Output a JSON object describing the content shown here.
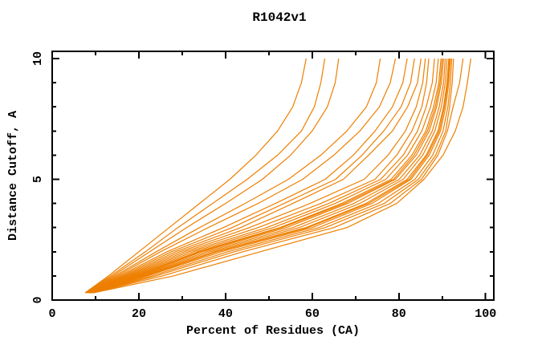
{
  "window": {
    "background_color": "#ffffff",
    "text_color": "#000000"
  },
  "chart_data": {
    "type": "line",
    "title": "R1042v1",
    "xlabel": "Percent of Residues (CA)",
    "ylabel": "Distance Cutoff, A",
    "legend": "none",
    "grid": false,
    "frame": "box-with-mirrored-inward-ticks",
    "line_color": "#ee7f00",
    "frame_color": "#000000",
    "xlim": [
      0,
      101.9
    ],
    "ylim": [
      0,
      10.3
    ],
    "x_major_ticks": [
      0,
      20,
      40,
      60,
      80,
      100
    ],
    "x_minor_ticks": [
      10,
      30,
      50,
      70,
      90
    ],
    "y_major_ticks": [
      0,
      5,
      10
    ],
    "y_minor_ticks": [
      1,
      2,
      3,
      4,
      6,
      7,
      8,
      9
    ],
    "x_tick_labels": [
      "0",
      "20",
      "40",
      "60",
      "80",
      "100"
    ],
    "y_tick_labels": [
      "0",
      "5",
      "10"
    ],
    "n_curves": 24,
    "series": [
      {
        "points": [
          [
            7.6,
            0.3
          ],
          [
            13,
            1
          ],
          [
            20,
            2
          ],
          [
            27,
            3
          ],
          [
            34,
            4
          ],
          [
            41,
            5
          ],
          [
            47,
            6
          ],
          [
            52,
            7
          ],
          [
            55.5,
            8
          ],
          [
            57.5,
            9
          ],
          [
            58.6,
            10
          ]
        ]
      },
      {
        "points": [
          [
            7.6,
            0.3
          ],
          [
            13.5,
            1
          ],
          [
            21.5,
            2
          ],
          [
            29,
            3
          ],
          [
            37,
            4
          ],
          [
            45,
            5
          ],
          [
            52,
            6
          ],
          [
            57.5,
            7
          ],
          [
            60.5,
            8
          ],
          [
            62,
            9
          ],
          [
            62.9,
            10
          ]
        ]
      },
      {
        "points": [
          [
            7.8,
            0.3
          ],
          [
            14,
            1
          ],
          [
            22.5,
            2
          ],
          [
            31,
            3
          ],
          [
            40,
            4
          ],
          [
            48.5,
            5
          ],
          [
            55,
            6
          ],
          [
            60,
            7
          ],
          [
            63.5,
            8
          ],
          [
            65.3,
            9
          ],
          [
            66.1,
            10
          ]
        ]
      },
      {
        "points": [
          [
            7.8,
            0.3
          ],
          [
            14.5,
            1
          ],
          [
            24,
            2
          ],
          [
            34,
            3
          ],
          [
            44.5,
            4
          ],
          [
            54.5,
            5
          ],
          [
            62,
            6
          ],
          [
            68,
            7
          ],
          [
            72.5,
            8
          ],
          [
            74.8,
            9
          ],
          [
            75.7,
            10
          ]
        ]
      },
      {
        "points": [
          [
            8,
            0.3
          ],
          [
            15,
            1
          ],
          [
            25,
            2
          ],
          [
            36,
            3
          ],
          [
            47.5,
            4
          ],
          [
            57.8,
            5
          ],
          [
            65,
            6
          ],
          [
            71,
            7
          ],
          [
            75.5,
            8
          ],
          [
            78,
            9
          ],
          [
            79.2,
            10
          ]
        ]
      },
      {
        "points": [
          [
            8,
            0.3
          ],
          [
            15.5,
            1
          ],
          [
            26.5,
            2
          ],
          [
            39.5,
            3
          ],
          [
            51.5,
            4
          ],
          [
            63,
            5
          ],
          [
            69.5,
            6
          ],
          [
            74.5,
            7
          ],
          [
            78.5,
            8
          ],
          [
            80.9,
            9
          ],
          [
            81.9,
            10
          ]
        ]
      },
      {
        "points": [
          [
            8.2,
            0.3
          ],
          [
            16,
            1
          ],
          [
            27.5,
            2
          ],
          [
            41.5,
            3
          ],
          [
            53.5,
            4
          ],
          [
            65.4,
            5
          ],
          [
            71.5,
            6
          ],
          [
            76.5,
            7
          ],
          [
            80.5,
            8
          ],
          [
            82.7,
            9
          ],
          [
            83.6,
            10
          ]
        ]
      },
      {
        "points": [
          [
            8.2,
            0.3
          ],
          [
            16.5,
            1
          ],
          [
            28.5,
            2
          ],
          [
            43.5,
            3
          ],
          [
            55.5,
            4
          ],
          [
            67.2,
            5
          ],
          [
            73,
            6
          ],
          [
            78.5,
            7
          ],
          [
            82,
            8
          ],
          [
            84.3,
            9
          ],
          [
            85.1,
            10
          ]
        ]
      },
      {
        "points": [
          [
            8.4,
            0.3
          ],
          [
            17,
            1
          ],
          [
            29.5,
            2
          ],
          [
            45.5,
            3
          ],
          [
            59.5,
            4
          ],
          [
            72,
            5
          ],
          [
            77.5,
            6
          ],
          [
            81.5,
            7
          ],
          [
            84,
            8
          ],
          [
            85.5,
            9
          ],
          [
            86.1,
            10
          ]
        ]
      },
      {
        "points": [
          [
            8.4,
            0.3
          ],
          [
            17.5,
            1
          ],
          [
            30.5,
            2
          ],
          [
            47.5,
            3
          ],
          [
            62,
            4
          ],
          [
            74.5,
            5
          ],
          [
            79.5,
            6
          ],
          [
            83,
            7
          ],
          [
            85.3,
            8
          ],
          [
            86.4,
            9
          ],
          [
            86.9,
            10
          ]
        ]
      },
      {
        "points": [
          [
            8.5,
            0.3
          ],
          [
            18,
            1
          ],
          [
            31.5,
            2
          ],
          [
            49.5,
            3
          ],
          [
            63.8,
            4
          ],
          [
            75.8,
            5
          ],
          [
            81,
            6
          ],
          [
            84.3,
            7
          ],
          [
            86.3,
            8
          ],
          [
            87.7,
            9
          ],
          [
            88.2,
            10
          ]
        ]
      },
      {
        "points": [
          [
            8.5,
            0.3
          ],
          [
            18.5,
            1
          ],
          [
            32.5,
            2
          ],
          [
            51,
            3
          ],
          [
            65.3,
            4
          ],
          [
            77,
            5
          ],
          [
            82,
            6
          ],
          [
            85.3,
            7
          ],
          [
            87.3,
            8
          ],
          [
            88.6,
            9
          ],
          [
            89.1,
            10
          ]
        ]
      },
      {
        "points": [
          [
            8.6,
            0.3
          ],
          [
            19,
            1
          ],
          [
            33.5,
            2
          ],
          [
            52.5,
            3
          ],
          [
            66.8,
            4
          ],
          [
            78.2,
            5
          ],
          [
            83,
            6
          ],
          [
            86.2,
            7
          ],
          [
            88,
            8
          ],
          [
            89.2,
            9
          ],
          [
            89.7,
            10
          ]
        ]
      },
      {
        "points": [
          [
            8.6,
            0.3
          ],
          [
            19.2,
            1
          ],
          [
            34,
            2
          ],
          [
            53,
            3
          ],
          [
            67.5,
            4
          ],
          [
            78.8,
            5
          ],
          [
            83.5,
            6
          ],
          [
            86.6,
            7
          ],
          [
            88.4,
            8
          ],
          [
            89.5,
            9
          ],
          [
            90,
            10
          ]
        ]
      },
      {
        "points": [
          [
            8.6,
            0.3
          ],
          [
            19.5,
            1
          ],
          [
            34.5,
            2
          ],
          [
            54,
            3
          ],
          [
            68.2,
            4
          ],
          [
            79.2,
            5
          ],
          [
            84,
            6
          ],
          [
            87,
            7
          ],
          [
            88.7,
            8
          ],
          [
            89.8,
            9
          ],
          [
            90.3,
            10
          ]
        ]
      },
      {
        "points": [
          [
            8.7,
            0.3
          ],
          [
            20,
            1
          ],
          [
            35.5,
            2
          ],
          [
            55.5,
            3
          ],
          [
            69.6,
            4
          ],
          [
            80.1,
            5
          ],
          [
            84.8,
            6
          ],
          [
            87.7,
            7
          ],
          [
            89.3,
            8
          ],
          [
            90.3,
            9
          ],
          [
            90.7,
            10
          ]
        ]
      },
      {
        "points": [
          [
            8.7,
            0.3
          ],
          [
            20.5,
            1
          ],
          [
            36.5,
            2
          ],
          [
            57,
            3
          ],
          [
            71,
            4
          ],
          [
            81,
            5
          ],
          [
            85.5,
            6
          ],
          [
            88.3,
            7
          ],
          [
            89.8,
            8
          ],
          [
            90.7,
            9
          ],
          [
            91.1,
            10
          ]
        ]
      },
      {
        "points": [
          [
            8.8,
            0.3
          ],
          [
            21,
            1
          ],
          [
            37.5,
            2
          ],
          [
            58.5,
            3
          ],
          [
            72.4,
            4
          ],
          [
            81.9,
            5
          ],
          [
            86.3,
            6
          ],
          [
            89,
            7
          ],
          [
            90.3,
            8
          ],
          [
            91.1,
            9
          ],
          [
            91.5,
            10
          ]
        ]
      },
      {
        "points": [
          [
            8.9,
            0.3
          ],
          [
            21.5,
            1
          ],
          [
            38,
            2
          ],
          [
            59,
            3
          ],
          [
            73,
            4
          ],
          [
            82.4,
            5
          ],
          [
            86.6,
            6
          ],
          [
            89.3,
            7
          ],
          [
            90.5,
            8
          ],
          [
            91.3,
            9
          ],
          [
            91.7,
            10
          ]
        ]
      },
      {
        "points": [
          [
            8.8,
            0.3
          ],
          [
            22,
            1
          ],
          [
            39,
            2
          ],
          [
            60,
            3
          ],
          [
            73.8,
            4
          ],
          [
            82.8,
            5
          ],
          [
            87,
            6
          ],
          [
            89.6,
            7
          ],
          [
            90.8,
            8
          ],
          [
            91.5,
            9
          ],
          [
            91.9,
            10
          ]
        ]
      },
      {
        "points": [
          [
            8.9,
            0.3
          ],
          [
            23,
            1
          ],
          [
            40.5,
            2
          ],
          [
            61.5,
            3
          ],
          [
            75.2,
            4
          ],
          [
            83.7,
            5
          ],
          [
            87.8,
            6
          ],
          [
            90.2,
            7
          ],
          [
            91.3,
            8
          ],
          [
            91.9,
            9
          ],
          [
            92.2,
            10
          ]
        ]
      },
      {
        "points": [
          [
            9,
            0.3
          ],
          [
            24,
            1
          ],
          [
            42,
            2
          ],
          [
            63,
            3
          ],
          [
            76.6,
            4
          ],
          [
            84.5,
            5
          ],
          [
            88.5,
            6
          ],
          [
            90.8,
            7
          ],
          [
            91.7,
            8
          ],
          [
            92.3,
            9
          ],
          [
            92.6,
            10
          ]
        ]
      },
      {
        "points": [
          [
            9.2,
            0.3
          ],
          [
            25.5,
            1
          ],
          [
            44,
            2
          ],
          [
            65,
            3
          ],
          [
            78,
            4
          ],
          [
            85.2,
            5
          ],
          [
            89,
            6
          ],
          [
            91.2,
            7
          ],
          [
            92.5,
            8
          ],
          [
            94,
            9
          ],
          [
            94.8,
            10
          ]
        ]
      },
      {
        "points": [
          [
            9.5,
            0.3
          ],
          [
            28,
            1
          ],
          [
            48,
            2
          ],
          [
            68,
            3
          ],
          [
            79.5,
            4
          ],
          [
            85.8,
            5
          ],
          [
            90.2,
            6
          ],
          [
            93,
            7
          ],
          [
            94.8,
            8
          ],
          [
            95.8,
            9
          ],
          [
            96.6,
            10
          ]
        ]
      }
    ]
  }
}
